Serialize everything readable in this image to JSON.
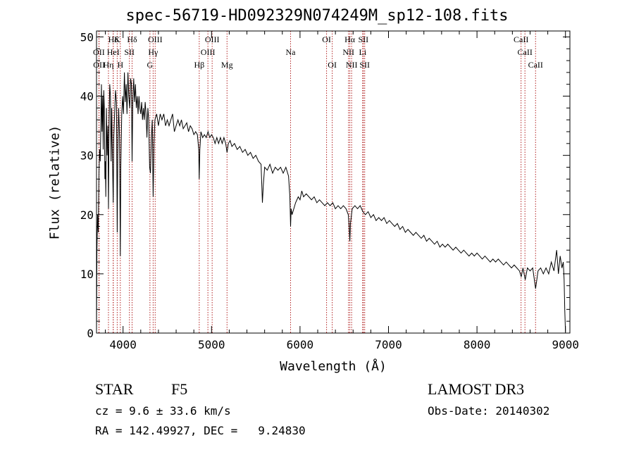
{
  "chart_data": {
    "type": "line",
    "title": "spec-56719-HD092329N074249M_sp12-108.fits",
    "xlabel": "Wavelength (Å)",
    "ylabel": "Flux (relative)",
    "xlim": [
      3700,
      9050
    ],
    "ylim": [
      0,
      51
    ],
    "xticks": [
      4000,
      5000,
      6000,
      7000,
      8000,
      9000
    ],
    "yticks": [
      0,
      10,
      20,
      30,
      40,
      50
    ],
    "grid": false,
    "lines": [
      {
        "label": "Hδ",
        "wavelength": 3889,
        "row": 1
      },
      {
        "label": "OII",
        "wavelength": 3727,
        "row": 2
      },
      {
        "label": "OII",
        "wavelength": 3729,
        "row": 3
      },
      {
        "label": "HeI",
        "wavelength": 3889,
        "row": 2
      },
      {
        "label": "Hη",
        "wavelength": 3835,
        "row": 3
      },
      {
        "label": "K",
        "wavelength": 3934,
        "row": 1
      },
      {
        "label": "H",
        "wavelength": 3969,
        "row": 3
      },
      {
        "label": "SII",
        "wavelength": 4072,
        "row": 2
      },
      {
        "label": "Hδ",
        "wavelength": 4102,
        "row": 1
      },
      {
        "label": "OIII",
        "wavelength": 4363,
        "row": 1
      },
      {
        "label": "Hγ",
        "wavelength": 4340,
        "row": 2
      },
      {
        "label": "G",
        "wavelength": 4304,
        "row": 3
      },
      {
        "label": "Hβ",
        "wavelength": 4861,
        "row": 3
      },
      {
        "label": "OIII",
        "wavelength": 5007,
        "row": 1
      },
      {
        "label": "OIII",
        "wavelength": 4959,
        "row": 2
      },
      {
        "label": "Mg",
        "wavelength": 5175,
        "row": 3
      },
      {
        "label": "Na",
        "wavelength": 5893,
        "row": 2
      },
      {
        "label": "OI",
        "wavelength": 6300,
        "row": 1
      },
      {
        "label": "OI",
        "wavelength": 6364,
        "row": 3
      },
      {
        "label": "Hα",
        "wavelength": 6563,
        "row": 1
      },
      {
        "label": "NII",
        "wavelength": 6548,
        "row": 2
      },
      {
        "label": "NII",
        "wavelength": 6583,
        "row": 3
      },
      {
        "label": "SII",
        "wavelength": 6716,
        "row": 1
      },
      {
        "label": "Li",
        "wavelength": 6708,
        "row": 2
      },
      {
        "label": "SII",
        "wavelength": 6731,
        "row": 3
      },
      {
        "label": "CaII",
        "wavelength": 8498,
        "row": 1
      },
      {
        "label": "CaII",
        "wavelength": 8542,
        "row": 2
      },
      {
        "label": "CaII",
        "wavelength": 8662,
        "row": 3
      }
    ],
    "series": [
      {
        "name": "flux",
        "points": [
          [
            3700,
            0.2
          ],
          [
            3705,
            14
          ],
          [
            3712,
            20
          ],
          [
            3720,
            17
          ],
          [
            3728,
            27
          ],
          [
            3735,
            31
          ],
          [
            3742,
            29
          ],
          [
            3750,
            36
          ],
          [
            3756,
            42
          ],
          [
            3762,
            34
          ],
          [
            3770,
            40
          ],
          [
            3776,
            31
          ],
          [
            3782,
            41
          ],
          [
            3788,
            38
          ],
          [
            3795,
            26
          ],
          [
            3800,
            29
          ],
          [
            3805,
            23
          ],
          [
            3812,
            38
          ],
          [
            3820,
            30
          ],
          [
            3828,
            35
          ],
          [
            3835,
            21
          ],
          [
            3842,
            36
          ],
          [
            3850,
            42
          ],
          [
            3858,
            40
          ],
          [
            3865,
            29
          ],
          [
            3872,
            38
          ],
          [
            3880,
            30
          ],
          [
            3889,
            22
          ],
          [
            3895,
            33
          ],
          [
            3905,
            37
          ],
          [
            3915,
            41
          ],
          [
            3925,
            39
          ],
          [
            3934,
            17
          ],
          [
            3940,
            30
          ],
          [
            3950,
            38
          ],
          [
            3960,
            33
          ],
          [
            3969,
            13
          ],
          [
            3975,
            28
          ],
          [
            3985,
            37
          ],
          [
            3995,
            40
          ],
          [
            4005,
            37
          ],
          [
            4015,
            44
          ],
          [
            4025,
            39
          ],
          [
            4035,
            42
          ],
          [
            4045,
            37
          ],
          [
            4055,
            44
          ],
          [
            4065,
            40
          ],
          [
            4075,
            38
          ],
          [
            4085,
            43
          ],
          [
            4095,
            42
          ],
          [
            4102,
            29
          ],
          [
            4110,
            39
          ],
          [
            4120,
            43
          ],
          [
            4130,
            39
          ],
          [
            4140,
            42
          ],
          [
            4150,
            38
          ],
          [
            4160,
            40
          ],
          [
            4170,
            37
          ],
          [
            4180,
            40
          ],
          [
            4190,
            38
          ],
          [
            4200,
            37
          ],
          [
            4210,
            39
          ],
          [
            4220,
            36
          ],
          [
            4230,
            38
          ],
          [
            4240,
            36
          ],
          [
            4250,
            39
          ],
          [
            4260,
            37
          ],
          [
            4270,
            33
          ],
          [
            4280,
            38
          ],
          [
            4290,
            36
          ],
          [
            4300,
            28
          ],
          [
            4310,
            27
          ],
          [
            4320,
            33
          ],
          [
            4330,
            36
          ],
          [
            4340,
            23
          ],
          [
            4350,
            32
          ],
          [
            4360,
            36
          ],
          [
            4380,
            37
          ],
          [
            4400,
            35
          ],
          [
            4420,
            37
          ],
          [
            4440,
            36
          ],
          [
            4460,
            37
          ],
          [
            4480,
            35
          ],
          [
            4500,
            36
          ],
          [
            4520,
            35
          ],
          [
            4540,
            36
          ],
          [
            4560,
            37
          ],
          [
            4580,
            34
          ],
          [
            4600,
            35
          ],
          [
            4620,
            36
          ],
          [
            4640,
            35
          ],
          [
            4660,
            36
          ],
          [
            4680,
            34.5
          ],
          [
            4700,
            35
          ],
          [
            4720,
            35.5
          ],
          [
            4740,
            34
          ],
          [
            4760,
            35
          ],
          [
            4780,
            34.5
          ],
          [
            4800,
            33.5
          ],
          [
            4820,
            34
          ],
          [
            4840,
            33.5
          ],
          [
            4855,
            31
          ],
          [
            4861,
            26
          ],
          [
            4868,
            31
          ],
          [
            4880,
            34
          ],
          [
            4900,
            33
          ],
          [
            4920,
            33.5
          ],
          [
            4940,
            33
          ],
          [
            4960,
            34
          ],
          [
            4980,
            33
          ],
          [
            5000,
            33.5
          ],
          [
            5020,
            33
          ],
          [
            5040,
            32
          ],
          [
            5060,
            33
          ],
          [
            5080,
            32
          ],
          [
            5100,
            33
          ],
          [
            5120,
            32
          ],
          [
            5140,
            33
          ],
          [
            5160,
            32
          ],
          [
            5175,
            30.5
          ],
          [
            5190,
            32
          ],
          [
            5210,
            32.5
          ],
          [
            5230,
            31.5
          ],
          [
            5260,
            32
          ],
          [
            5290,
            31
          ],
          [
            5320,
            31.5
          ],
          [
            5350,
            30.5
          ],
          [
            5380,
            31
          ],
          [
            5410,
            30
          ],
          [
            5440,
            30.5
          ],
          [
            5470,
            29.5
          ],
          [
            5500,
            30
          ],
          [
            5530,
            29
          ],
          [
            5560,
            28.5
          ],
          [
            5575,
            22
          ],
          [
            5585,
            25
          ],
          [
            5600,
            28
          ],
          [
            5630,
            27.5
          ],
          [
            5660,
            28.5
          ],
          [
            5690,
            27
          ],
          [
            5720,
            28
          ],
          [
            5750,
            27.5
          ],
          [
            5780,
            28
          ],
          [
            5810,
            27
          ],
          [
            5840,
            28
          ],
          [
            5870,
            26.5
          ],
          [
            5885,
            23
          ],
          [
            5893,
            18
          ],
          [
            5900,
            21
          ],
          [
            5910,
            20
          ],
          [
            5930,
            21
          ],
          [
            5950,
            22
          ],
          [
            5980,
            23
          ],
          [
            6000,
            22.5
          ],
          [
            6020,
            24
          ],
          [
            6040,
            23
          ],
          [
            6070,
            23.5
          ],
          [
            6100,
            23
          ],
          [
            6130,
            22.5
          ],
          [
            6160,
            23
          ],
          [
            6190,
            22
          ],
          [
            6220,
            22.5
          ],
          [
            6250,
            22
          ],
          [
            6280,
            21.5
          ],
          [
            6310,
            22
          ],
          [
            6340,
            21.5
          ],
          [
            6370,
            22
          ],
          [
            6400,
            21
          ],
          [
            6430,
            21.5
          ],
          [
            6460,
            21
          ],
          [
            6490,
            21.5
          ],
          [
            6520,
            21
          ],
          [
            6545,
            20
          ],
          [
            6556,
            18
          ],
          [
            6563,
            15.5
          ],
          [
            6570,
            18.5
          ],
          [
            6590,
            21
          ],
          [
            6620,
            21.5
          ],
          [
            6650,
            21
          ],
          [
            6680,
            21.5
          ],
          [
            6710,
            20.5
          ],
          [
            6740,
            20
          ],
          [
            6770,
            20.5
          ],
          [
            6800,
            19.5
          ],
          [
            6830,
            20
          ],
          [
            6860,
            19
          ],
          [
            6890,
            19.5
          ],
          [
            6920,
            19
          ],
          [
            6950,
            19.5
          ],
          [
            6980,
            18.5
          ],
          [
            7010,
            19
          ],
          [
            7040,
            18.5
          ],
          [
            7070,
            18
          ],
          [
            7100,
            18.5
          ],
          [
            7130,
            17.5
          ],
          [
            7160,
            18
          ],
          [
            7190,
            17
          ],
          [
            7220,
            17.5
          ],
          [
            7250,
            17
          ],
          [
            7280,
            16.5
          ],
          [
            7310,
            17
          ],
          [
            7340,
            16.5
          ],
          [
            7370,
            16
          ],
          [
            7400,
            16.5
          ],
          [
            7430,
            15.5
          ],
          [
            7460,
            16
          ],
          [
            7490,
            15.5
          ],
          [
            7520,
            15
          ],
          [
            7550,
            15.5
          ],
          [
            7580,
            14.5
          ],
          [
            7610,
            15
          ],
          [
            7640,
            14.5
          ],
          [
            7670,
            15
          ],
          [
            7700,
            14.5
          ],
          [
            7730,
            14
          ],
          [
            7760,
            14.5
          ],
          [
            7790,
            14
          ],
          [
            7820,
            13.5
          ],
          [
            7850,
            14
          ],
          [
            7880,
            13.5
          ],
          [
            7910,
            13
          ],
          [
            7940,
            13.5
          ],
          [
            7970,
            13
          ],
          [
            8000,
            13.5
          ],
          [
            8030,
            13
          ],
          [
            8060,
            12.5
          ],
          [
            8090,
            13
          ],
          [
            8120,
            12.5
          ],
          [
            8150,
            12
          ],
          [
            8180,
            12.5
          ],
          [
            8210,
            12
          ],
          [
            8240,
            12.5
          ],
          [
            8270,
            12
          ],
          [
            8300,
            11.5
          ],
          [
            8330,
            12
          ],
          [
            8360,
            11.5
          ],
          [
            8390,
            11
          ],
          [
            8420,
            11.5
          ],
          [
            8450,
            11
          ],
          [
            8480,
            10.5
          ],
          [
            8500,
            9.5
          ],
          [
            8520,
            11
          ],
          [
            8545,
            9
          ],
          [
            8570,
            11
          ],
          [
            8600,
            10.5
          ],
          [
            8630,
            11
          ],
          [
            8662,
            7.5
          ],
          [
            8690,
            10.5
          ],
          [
            8720,
            11
          ],
          [
            8750,
            10
          ],
          [
            8780,
            11
          ],
          [
            8810,
            10
          ],
          [
            8840,
            12
          ],
          [
            8870,
            10.5
          ],
          [
            8900,
            14
          ],
          [
            8920,
            10
          ],
          [
            8940,
            13
          ],
          [
            8960,
            11
          ],
          [
            8975,
            12
          ],
          [
            8985,
            9
          ],
          [
            8992,
            4
          ],
          [
            9000,
            0.2
          ]
        ]
      }
    ]
  },
  "info": {
    "object_class": "STAR",
    "subclass": "F5",
    "survey": "LAMOST DR3",
    "cz": "cz = 9.6 ± 33.6 km/s",
    "obs_date": "Obs-Date: 20140302",
    "coords": "RA = 142.49927, DEC =   9.24830"
  }
}
